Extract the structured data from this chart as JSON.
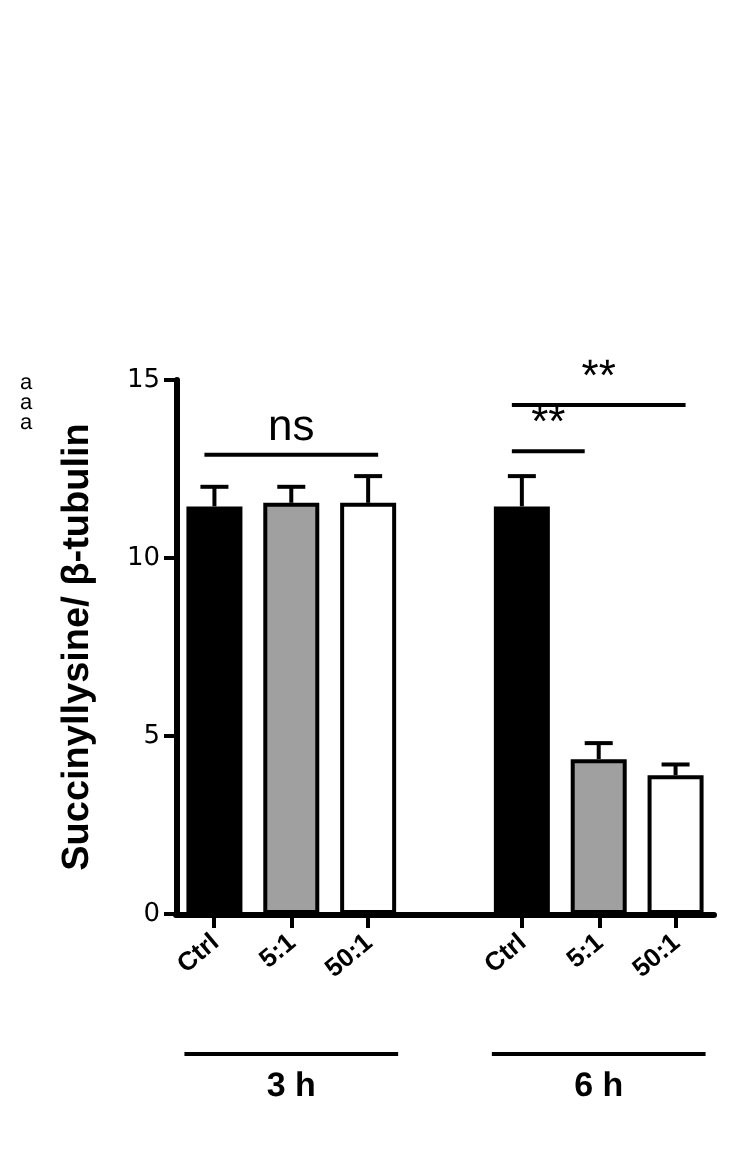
{
  "chart_data": {
    "type": "bar",
    "ylabel": "Succinyllysine/ β-tubulin",
    "categories": [
      "Ctrl",
      "5:1",
      "50:1",
      null,
      "Ctrl",
      "5:1",
      "50:1"
    ],
    "values": [
      11.45,
      11.55,
      11.55,
      null,
      11.45,
      4.35,
      3.9
    ],
    "errors": [
      0.55,
      0.45,
      0.75,
      null,
      0.85,
      0.45,
      0.3
    ],
    "colors": [
      "#000000",
      "#a0a0a0",
      "#ffffff",
      null,
      "#000000",
      "#a0a0a0",
      "#ffffff"
    ],
    "ylim": [
      0,
      15
    ],
    "yticks": [
      0,
      5,
      10,
      15
    ],
    "grid": false,
    "annotations": [
      "ns",
      "**",
      "**",
      "3 h",
      "6 h",
      "a",
      "a",
      "a"
    ]
  }
}
